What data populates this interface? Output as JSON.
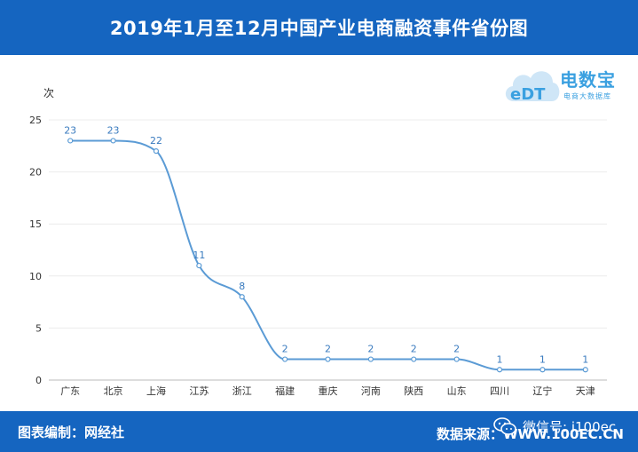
{
  "header": {
    "title": "2019年1月至12月中国产业电商融资事件省份图"
  },
  "logo": {
    "brand": "电数宝",
    "sub": "电商大数据库",
    "mark": "eDT"
  },
  "footer": {
    "left": "图表编制：网经社",
    "right": "数据来源：WWW.100EC.CN",
    "wechat": "微信号: i100ec",
    "wechat_icon": "wechat-icon"
  },
  "colors": {
    "header_bg": "#1565c0",
    "line": "#5b9bd5",
    "label": "#3a7bbf"
  },
  "chart_data": {
    "type": "line",
    "title": "2019年1月至12月中国产业电商融资事件省份图",
    "ylabel": "次",
    "xlabel": "",
    "categories": [
      "广东",
      "北京",
      "上海",
      "江苏",
      "浙江",
      "福建",
      "重庆",
      "河南",
      "陕西",
      "山东",
      "四川",
      "辽宁",
      "天津"
    ],
    "values": [
      23,
      23,
      22,
      11,
      8,
      2,
      2,
      2,
      2,
      2,
      1,
      1,
      1
    ],
    "ylim": [
      0,
      25
    ],
    "yticks": [
      0,
      5,
      10,
      15,
      20,
      25
    ],
    "smooth": true,
    "grid": true,
    "legend": "none"
  }
}
